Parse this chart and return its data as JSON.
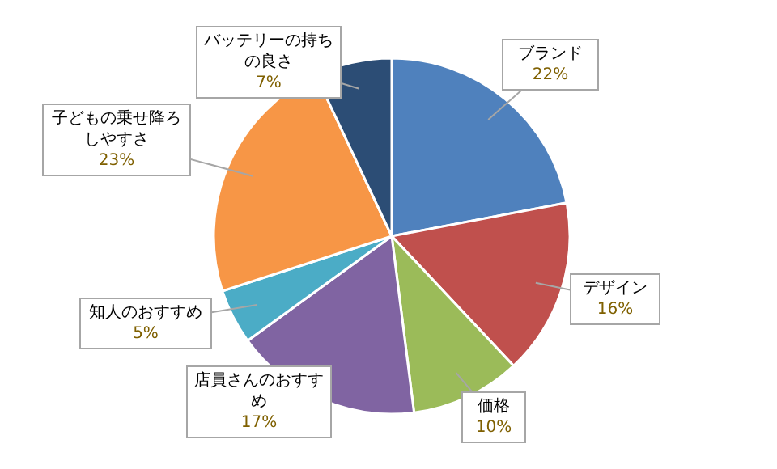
{
  "chart_data": {
    "type": "pie",
    "categories": [
      "ブランド",
      "デザイン",
      "価格",
      "店員さんのおすすめ",
      "知人のおすすめ",
      "子どもの乗せ降ろしやすさ",
      "バッテリーの持ちの良さ"
    ],
    "values": [
      22,
      16,
      10,
      17,
      5,
      23,
      7
    ],
    "colors": [
      "#4f81bd",
      "#c0504d",
      "#9bbb59",
      "#8064a2",
      "#4bacc6",
      "#f79646",
      "#2c4d75"
    ],
    "value_labels": [
      "22%",
      "16%",
      "10%",
      "17%",
      "5%",
      "23%",
      "7%"
    ]
  }
}
